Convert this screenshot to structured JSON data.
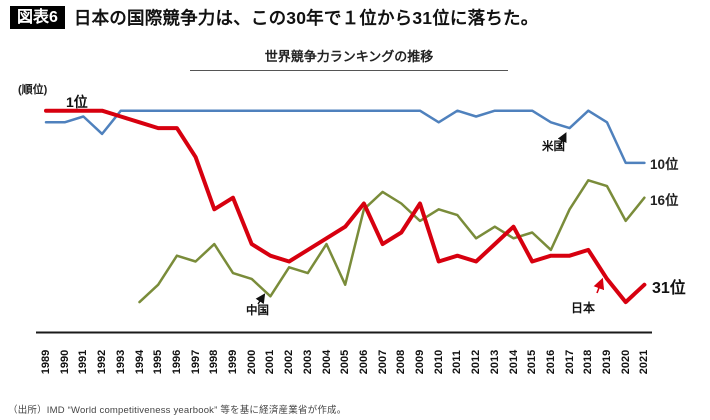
{
  "header": {
    "tag": "図表6",
    "title": "日本の国際競争力は、この30年で１位から31位に落ちた。"
  },
  "chart_data": {
    "type": "line",
    "title": "世界競争力ランキングの推移",
    "y_axis_label": "(順位)",
    "y_axis_inverted": true,
    "x_range": [
      1989,
      2021
    ],
    "grid": false,
    "series": [
      {
        "id": "japan",
        "name": "日本",
        "color": "#d7000f",
        "line_width": 4,
        "start_year": 1989,
        "values": [
          1,
          1,
          1,
          1,
          2,
          3,
          4,
          4,
          9,
          18,
          16,
          24,
          26,
          27,
          25,
          23,
          21,
          17,
          24,
          22,
          17,
          27,
          26,
          27,
          24,
          21,
          27,
          26,
          26,
          25,
          30,
          34,
          31
        ]
      },
      {
        "id": "usa",
        "name": "米国",
        "color": "#4f81bd",
        "line_width": 2.5,
        "start_year": 1989,
        "values": [
          3,
          3,
          2,
          5,
          1,
          1,
          1,
          1,
          1,
          1,
          1,
          1,
          1,
          1,
          1,
          1,
          1,
          1,
          1,
          1,
          1,
          3,
          1,
          2,
          1,
          1,
          1,
          3,
          4,
          1,
          3,
          10,
          10
        ]
      },
      {
        "id": "china",
        "name": "中国",
        "color": "#7a8c3a",
        "line_width": 2.5,
        "start_year": 1994,
        "values": [
          34,
          31,
          26,
          27,
          24,
          29,
          30,
          33,
          28,
          29,
          24,
          31,
          18,
          15,
          17,
          20,
          18,
          19,
          23,
          21,
          23,
          22,
          25,
          18,
          13,
          14,
          20,
          16
        ]
      }
    ],
    "annotations": {
      "start_rank_label": "1位",
      "usa_end_label": "10位",
      "china_end_label": "16位",
      "japan_end_label": "31位",
      "usa_series_label": "米国",
      "china_series_label": "中国",
      "japan_series_label": "日本"
    },
    "x_tick_labels": [
      "1989",
      "1990",
      "1991",
      "1992",
      "1993",
      "1994",
      "1995",
      "1996",
      "1997",
      "1998",
      "1999",
      "2000",
      "2001",
      "2002",
      "2003",
      "2004",
      "2005",
      "2006",
      "2007",
      "2008",
      "2009",
      "2010",
      "2011",
      "2012",
      "2013",
      "2014",
      "2015",
      "2016",
      "2017",
      "2018",
      "2019",
      "2020",
      "2021"
    ]
  },
  "footer": {
    "source": "（出所）IMD “World competitiveness yearbook” 等を基に経済産業省が作成。"
  }
}
